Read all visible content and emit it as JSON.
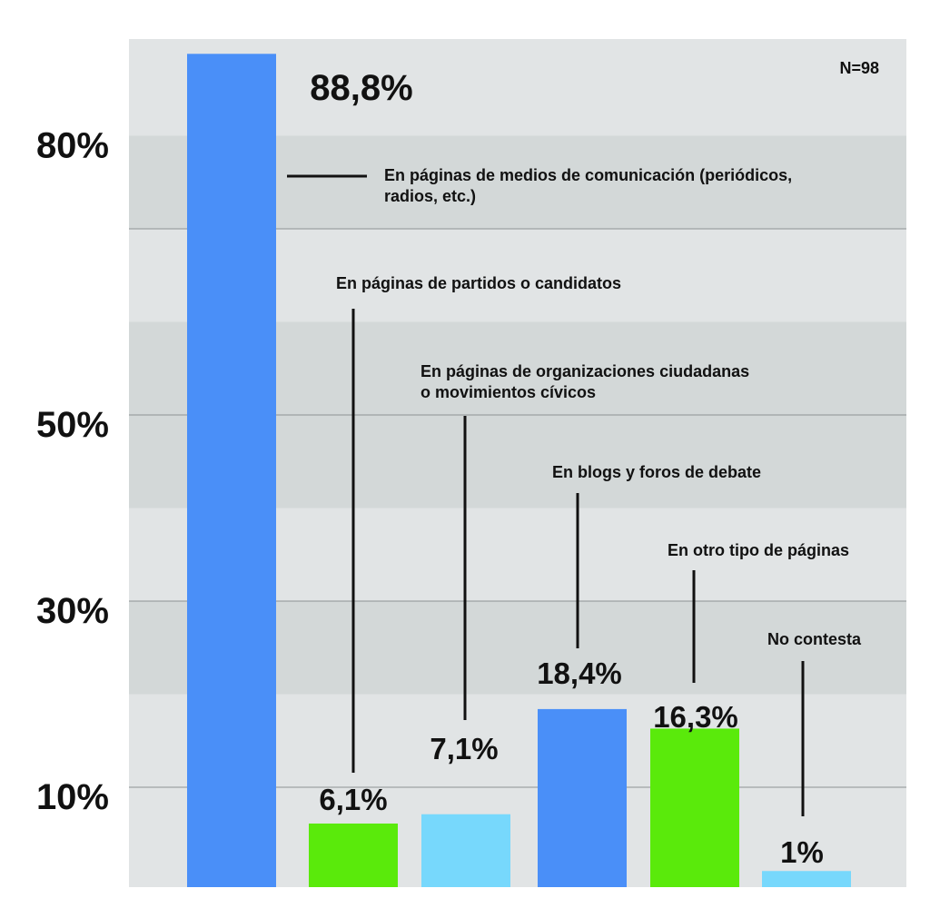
{
  "chart_data": {
    "type": "bar",
    "sample_note": "N=98",
    "categories": [
      "En páginas de medios de comunicación (periódicos, radios, etc.)",
      "En páginas de partidos o candidatos",
      "En páginas de organizaciones ciudadanas o movimientos cívicos",
      "En blogs y foros de debate",
      "En otro tipo de páginas",
      "No contesta"
    ],
    "category_lines": [
      [
        "En páginas de medios de comunicación (periódicos,",
        "radios, etc.)"
      ],
      [
        "En páginas de partidos o candidatos"
      ],
      [
        "En páginas de organizaciones ciudadanas",
        "o movimientos cívicos"
      ],
      [
        "En blogs y foros de debate"
      ],
      [
        "En otro tipo de páginas"
      ],
      [
        "No contesta"
      ]
    ],
    "values": [
      88.8,
      6.1,
      7.1,
      18.4,
      16.3,
      1
    ],
    "value_labels": [
      "88,8%",
      "6,1%",
      "7,1%",
      "18,4%",
      "16,3%",
      "1%"
    ],
    "bar_colors": [
      "#4a8ff8",
      "#5aea0b",
      "#77d8fc",
      "#4a8ff8",
      "#5aea0b",
      "#77d8fc"
    ],
    "y_ticks": [
      {
        "value": 10,
        "label": "10%"
      },
      {
        "value": 30,
        "label": "30%"
      },
      {
        "value": 50,
        "label": "50%"
      },
      {
        "value": 80,
        "label": "80%"
      }
    ],
    "ylim": [
      0,
      90
    ],
    "grid": true,
    "background_bands": [
      "#e1e4e5",
      "#d3d8d8"
    ]
  }
}
